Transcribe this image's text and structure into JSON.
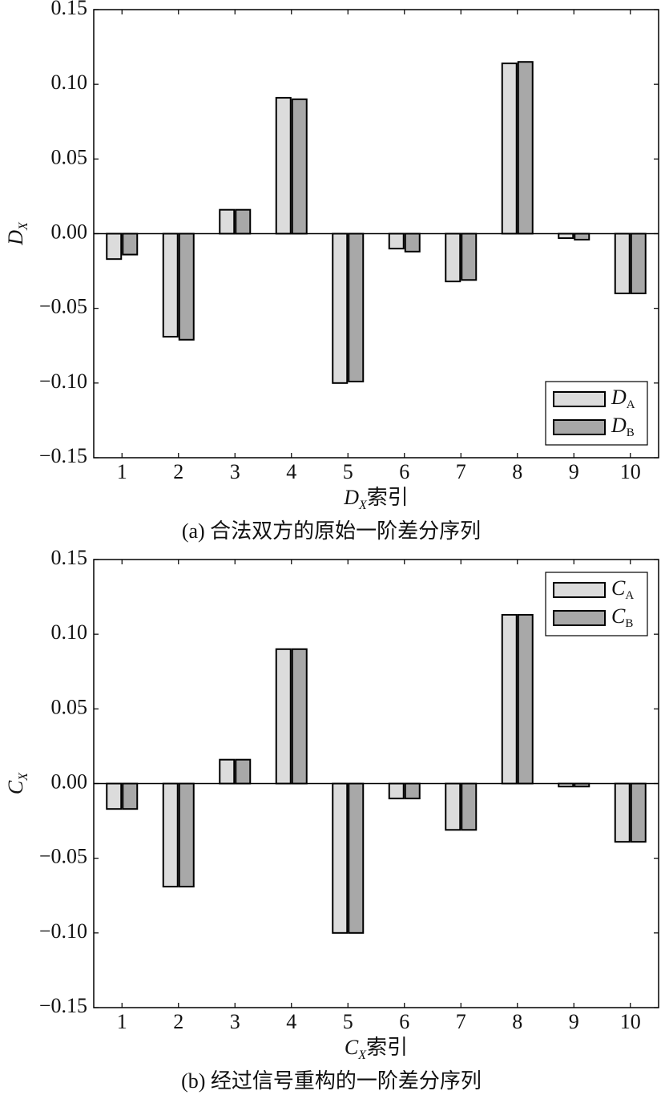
{
  "chart_data": [
    {
      "type": "bar",
      "caption": "(a) 合法双方的原始一阶差分序列",
      "ylabel": {
        "main": "D",
        "sub": "X"
      },
      "xlabel": {
        "main": "D",
        "sub": "X",
        "suffix": "索引"
      },
      "categories": [
        "1",
        "2",
        "3",
        "4",
        "5",
        "6",
        "7",
        "8",
        "9",
        "10"
      ],
      "series": [
        {
          "name": "D",
          "name_sub": "A",
          "color": "#dcdcdc",
          "values": [
            -0.017,
            -0.069,
            0.016,
            0.091,
            -0.1,
            -0.01,
            -0.032,
            0.114,
            -0.003,
            -0.04
          ]
        },
        {
          "name": "D",
          "name_sub": "B",
          "color": "#a8a8a8",
          "values": [
            -0.014,
            -0.071,
            0.016,
            0.09,
            -0.099,
            -0.012,
            -0.031,
            0.115,
            -0.004,
            -0.04
          ]
        }
      ],
      "ylim": [
        -0.15,
        0.15
      ],
      "yticks": [
        {
          "value": -0.15,
          "label": "−0.15"
        },
        {
          "value": -0.1,
          "label": "−0.10"
        },
        {
          "value": -0.05,
          "label": "−0.05"
        },
        {
          "value": 0,
          "label": "0.00"
        },
        0.05,
        {
          "value": 0.1,
          "label": "0.10"
        },
        0.15
      ],
      "legend": "lower right"
    },
    {
      "type": "bar",
      "caption": "(b) 经过信号重构的一阶差分序列",
      "ylabel": {
        "main": "C",
        "sub": "X"
      },
      "xlabel": {
        "main": "C",
        "sub": "X",
        "suffix": "索引"
      },
      "categories": [
        "1",
        "2",
        "3",
        "4",
        "5",
        "6",
        "7",
        "8",
        "9",
        "10"
      ],
      "series": [
        {
          "name": "C",
          "name_sub": "A",
          "color": "#dcdcdc",
          "values": [
            -0.017,
            -0.069,
            0.016,
            0.09,
            -0.1,
            -0.01,
            -0.031,
            0.113,
            -0.002,
            -0.039
          ]
        },
        {
          "name": "C",
          "name_sub": "B",
          "color": "#a8a8a8",
          "values": [
            -0.017,
            -0.069,
            0.016,
            0.09,
            -0.1,
            -0.01,
            -0.031,
            0.113,
            -0.002,
            -0.039
          ]
        }
      ],
      "ylim": [
        -0.15,
        0.15
      ],
      "yticks": [
        {
          "value": -0.15,
          "label": "−0.15"
        },
        {
          "value": -0.1,
          "label": "−0.10"
        },
        {
          "value": -0.05,
          "label": "−0.05"
        },
        {
          "value": 0,
          "label": "0.00"
        },
        0.05,
        {
          "value": 0.1,
          "label": "0.10"
        },
        0.15
      ],
      "legend": "upper right"
    }
  ]
}
